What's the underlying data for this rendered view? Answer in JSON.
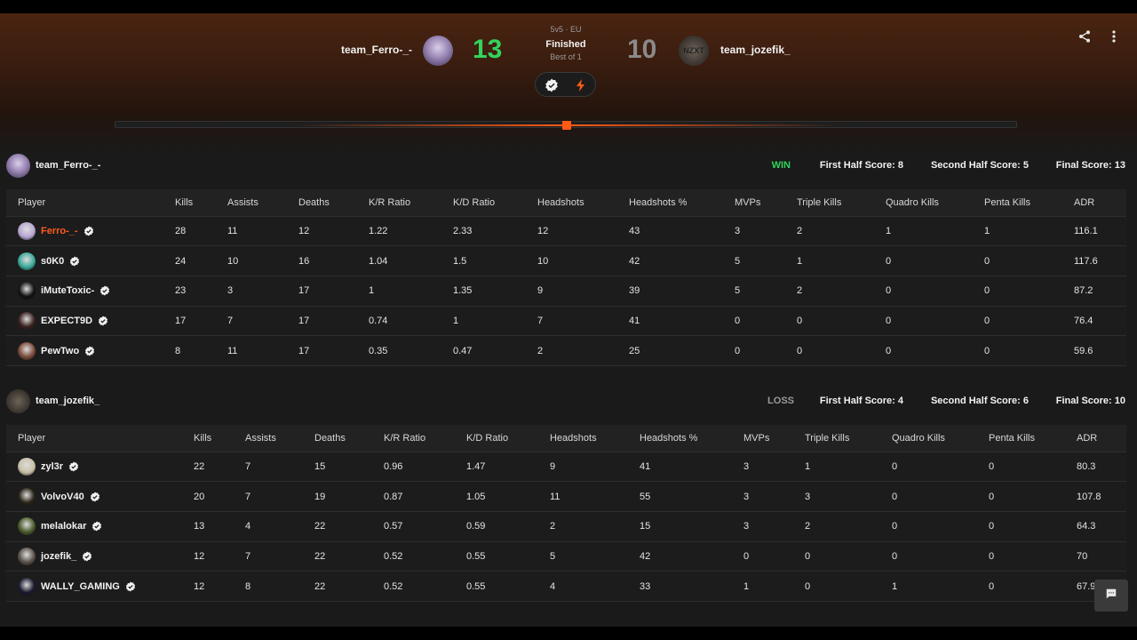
{
  "match": {
    "format": "5v5 · EU",
    "status": "Finished",
    "best_of": "Best of 1",
    "team1_name": "team_Ferro-_-",
    "team2_name": "team_jozefik_",
    "team1_score": "13",
    "team2_score": "10",
    "team2_avatar_text": "NZXT"
  },
  "colors": {
    "accent": "#ff5a14",
    "win": "#32d35a",
    "loss": "#9a9a9a"
  },
  "icons": [
    "share-icon",
    "more-vertical-icon",
    "verified-icon",
    "lightning-icon",
    "chat-icon"
  ],
  "team1": {
    "name": "team_Ferro-_-",
    "result": "WIN",
    "first_half": "First Half Score: 8",
    "second_half": "Second Half Score: 5",
    "final": "Final Score: 13",
    "headers": [
      "Player",
      "Kills",
      "Assists",
      "Deaths",
      "K/R Ratio",
      "K/D Ratio",
      "Headshots",
      "Headshots %",
      "MVPs",
      "Triple Kills",
      "Quadro Kills",
      "Penta Kills",
      "ADR"
    ],
    "players": [
      {
        "name": "Ferro-_-",
        "stats": [
          "28",
          "11",
          "12",
          "1.22",
          "2.33",
          "12",
          "43",
          "3",
          "2",
          "1",
          "1",
          "116.1"
        ],
        "avatar_color": "#b8a6d4"
      },
      {
        "name": "s0K0",
        "stats": [
          "24",
          "10",
          "16",
          "1.04",
          "1.5",
          "10",
          "42",
          "5",
          "1",
          "0",
          "0",
          "117.6"
        ],
        "avatar_color": "#3aa89a"
      },
      {
        "name": "iMuteToxic-",
        "stats": [
          "23",
          "3",
          "17",
          "1",
          "1.35",
          "9",
          "39",
          "5",
          "2",
          "0",
          "0",
          "87.2"
        ],
        "avatar_color": "#111111"
      },
      {
        "name": "EXPECT9D",
        "stats": [
          "17",
          "7",
          "17",
          "0.74",
          "1",
          "7",
          "41",
          "0",
          "0",
          "0",
          "0",
          "76.4"
        ],
        "avatar_color": "#3a2220"
      },
      {
        "name": "PewTwo",
        "stats": [
          "8",
          "11",
          "17",
          "0.35",
          "0.47",
          "2",
          "25",
          "0",
          "0",
          "0",
          "0",
          "59.6"
        ],
        "avatar_color": "#7a4a3a"
      }
    ]
  },
  "team2": {
    "name": "team_jozefik_",
    "result": "LOSS",
    "first_half": "First Half Score: 4",
    "second_half": "Second Half Score: 6",
    "final": "Final Score: 10",
    "headers": [
      "Player",
      "Kills",
      "Assists",
      "Deaths",
      "K/R Ratio",
      "K/D Ratio",
      "Headshots",
      "Headshots %",
      "MVPs",
      "Triple Kills",
      "Quadro Kills",
      "Penta Kills",
      "ADR"
    ],
    "players": [
      {
        "name": "zyl3r",
        "stats": [
          "22",
          "7",
          "15",
          "0.96",
          "1.47",
          "9",
          "41",
          "3",
          "1",
          "0",
          "0",
          "80.3"
        ],
        "avatar_color": "#c8c0a8"
      },
      {
        "name": "VolvoV40",
        "stats": [
          "20",
          "7",
          "19",
          "0.87",
          "1.05",
          "11",
          "55",
          "3",
          "3",
          "0",
          "0",
          "107.8"
        ],
        "avatar_color": "#2a2418"
      },
      {
        "name": "melalokar",
        "stats": [
          "13",
          "4",
          "22",
          "0.57",
          "0.59",
          "2",
          "15",
          "3",
          "2",
          "0",
          "0",
          "64.3"
        ],
        "avatar_color": "#4a5a2a"
      },
      {
        "name": "jozefik_",
        "stats": [
          "12",
          "7",
          "22",
          "0.52",
          "0.55",
          "5",
          "42",
          "0",
          "0",
          "0",
          "0",
          "70"
        ],
        "avatar_color": "#5a5048"
      },
      {
        "name": "WALLY_GAMING",
        "stats": [
          "12",
          "8",
          "22",
          "0.52",
          "0.55",
          "4",
          "33",
          "1",
          "0",
          "1",
          "0",
          "67.9"
        ],
        "avatar_color": "#1a1a30"
      }
    ]
  }
}
